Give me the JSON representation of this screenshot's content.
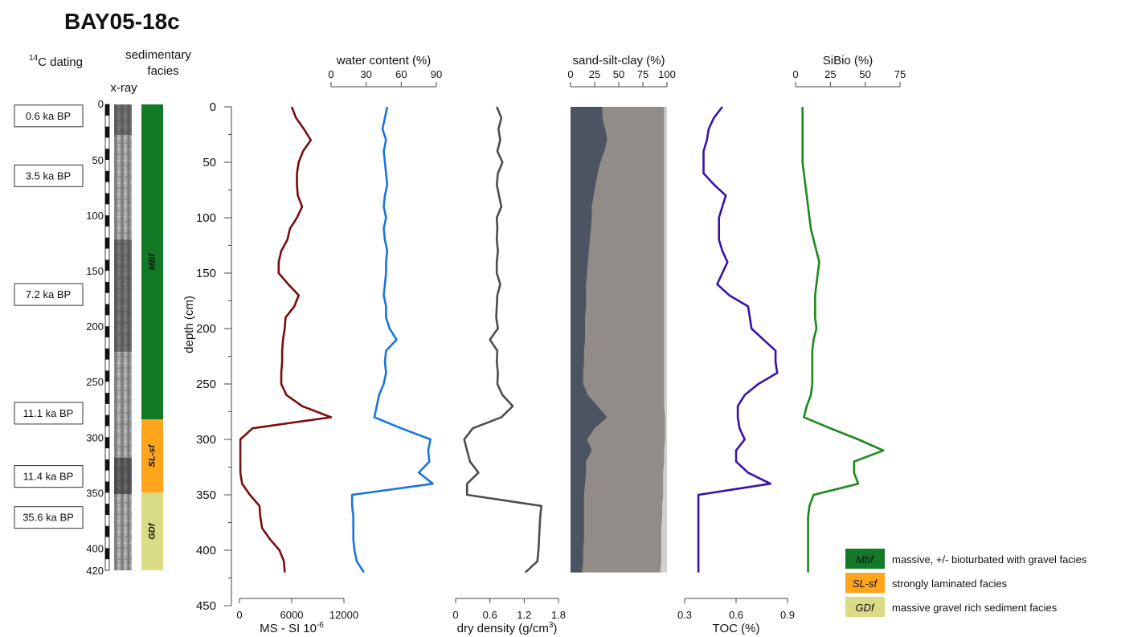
{
  "title": "BAY05-18c",
  "header": {
    "dating_prefix": "14",
    "dating_label": "C dating",
    "facies_label_1": "sedimentary",
    "facies_label_2": "facies",
    "xray_label": "x-ray"
  },
  "colors": {
    "ms": "#7a0d0d",
    "water": "#1a74e0",
    "density": "#4d4d4d",
    "toc": "#3a12a8",
    "sibio": "#1b8a1b",
    "sand": "#4b5460",
    "silt": "#918c87",
    "clay": "#cfcfcf",
    "mbf": "#127a26",
    "slsf": "#ffa51d",
    "gdf": "#d9db85"
  },
  "datings": [
    {
      "label": "0.6 ka BP",
      "depth": 10
    },
    {
      "label": "3.5 ka BP",
      "depth": 64
    },
    {
      "label": "7.2 ka BP",
      "depth": 171
    },
    {
      "label": "11.1 ka BP",
      "depth": 278
    },
    {
      "label": "11.4 ka BP",
      "depth": 335
    },
    {
      "label": "35.6 ka BP",
      "depth": 372
    }
  ],
  "core": {
    "ticks": [
      "0",
      "50",
      "100",
      "150",
      "200",
      "250",
      "300",
      "350",
      "400",
      "420"
    ],
    "bottom_depth": 420
  },
  "facies": [
    {
      "code": "MBf",
      "from": 0,
      "to": 284,
      "color_key": "mbf"
    },
    {
      "code": "SL-sf",
      "from": 284,
      "to": 350,
      "color_key": "slsf"
    },
    {
      "code": "GDf",
      "from": 350,
      "to": 420,
      "color_key": "gdf"
    }
  ],
  "legend": [
    {
      "code": "Mbf",
      "text": "massive, +/- bioturbated with gravel facies",
      "color_key": "mbf"
    },
    {
      "code": "SL-sf",
      "text": "strongly laminated facies",
      "color_key": "slsf"
    },
    {
      "code": "GDf",
      "text": "massive gravel rich sediment facies",
      "color_key": "gdf"
    }
  ],
  "chart_data": {
    "type": "line",
    "depth_axis": {
      "label": "depth (cm)",
      "range": [
        0,
        450
      ],
      "ticks": [
        "0",
        "50",
        "100",
        "150",
        "200",
        "250",
        "300",
        "350",
        "400",
        "450"
      ]
    },
    "depth": [
      0,
      10,
      20,
      30,
      40,
      50,
      60,
      70,
      80,
      90,
      100,
      110,
      120,
      130,
      140,
      150,
      160,
      170,
      180,
      190,
      200,
      210,
      220,
      230,
      240,
      250,
      260,
      270,
      280,
      290,
      300,
      310,
      320,
      330,
      340,
      350,
      360,
      370,
      380,
      390,
      400,
      410,
      420
    ],
    "panels": [
      {
        "key": "ms",
        "xlabel": "MS - SI 10",
        "xlabel_sup": "-6",
        "axis_position": "bottom",
        "range": [
          0,
          12000
        ],
        "ticks": [
          "0",
          "6000",
          "12000"
        ],
        "values": [
          6000,
          6500,
          7400,
          8200,
          7300,
          6800,
          6600,
          6600,
          6700,
          7200,
          6600,
          5800,
          5500,
          4800,
          4500,
          4500,
          5600,
          6800,
          6300,
          5300,
          5200,
          5000,
          4900,
          4900,
          4800,
          4800,
          5400,
          7200,
          10500,
          1500,
          100,
          100,
          100,
          100,
          300,
          1200,
          2300,
          2400,
          2600,
          3500,
          4600,
          5100,
          5200
        ]
      },
      {
        "key": "water",
        "xlabel": "water content (%)",
        "axis_position": "top",
        "range": [
          0,
          90
        ],
        "ticks": [
          "0",
          "30",
          "60",
          "90"
        ],
        "values": [
          48,
          46,
          44,
          47,
          45,
          46,
          47,
          48,
          46,
          45,
          47,
          45,
          46,
          48,
          47,
          47,
          46,
          45,
          47,
          47,
          50,
          56,
          47,
          46,
          47,
          45,
          41,
          39,
          37,
          60,
          85,
          83,
          84,
          75,
          87,
          18,
          18,
          19,
          19,
          19,
          20,
          22,
          28
        ]
      },
      {
        "key": "density",
        "xlabel": "dry density (g/cm",
        "xlabel_sup": "3",
        "xlabel_suffix": ")",
        "axis_position": "bottom",
        "range": [
          0,
          1.8
        ],
        "ticks": [
          "0",
          "0.6",
          "1.2",
          "1.8"
        ],
        "values": [
          0.72,
          0.8,
          0.75,
          0.78,
          0.73,
          0.82,
          0.74,
          0.72,
          0.76,
          0.8,
          0.72,
          0.73,
          0.72,
          0.74,
          0.72,
          0.72,
          0.78,
          0.73,
          0.72,
          0.71,
          0.74,
          0.6,
          0.73,
          0.72,
          0.74,
          0.73,
          0.82,
          1.0,
          0.8,
          0.3,
          0.15,
          0.2,
          0.25,
          0.4,
          0.2,
          0.2,
          1.5,
          1.48,
          1.47,
          1.46,
          1.45,
          1.43,
          1.22
        ]
      },
      {
        "key": "sand-silt-clay",
        "type": "area",
        "xlabel": "sand-silt-clay (%)",
        "axis_position": "top",
        "range": [
          0,
          100
        ],
        "ticks": [
          "0",
          "25",
          "50",
          "75",
          "100"
        ],
        "series": [
          {
            "name": "sand",
            "values": [
              33,
              33,
              36,
              38,
              35,
              31,
              28,
              26,
              24,
              22,
              22,
              21,
              20,
              19,
              18,
              17,
              16,
              16,
              16,
              15,
              15,
              15,
              14,
              14,
              13,
              13,
              18,
              28,
              38,
              25,
              17,
              22,
              16,
              16,
              15,
              14,
              14,
              14,
              14,
              14,
              13,
              13,
              12
            ]
          },
          {
            "name": "silt",
            "values": [
              64,
              64,
              61,
              59,
              62,
              66,
              69,
              71,
              73,
              75,
              75,
              76,
              77,
              78,
              79,
              80,
              81,
              81,
              81,
              82,
              82,
              82,
              83,
              83,
              84,
              84,
              79,
              69,
              60,
              73,
              81,
              75,
              81,
              80,
              81,
              82,
              81,
              81,
              80,
              80,
              81,
              81,
              81
            ]
          },
          {
            "name": "clay",
            "values": [
              3,
              3,
              3,
              3,
              3,
              3,
              3,
              3,
              3,
              3,
              3,
              3,
              3,
              3,
              3,
              3,
              3,
              3,
              3,
              3,
              3,
              3,
              3,
              3,
              3,
              3,
              3,
              3,
              2,
              2,
              2,
              3,
              3,
              4,
              4,
              4,
              5,
              5,
              6,
              6,
              6,
              6,
              7
            ]
          }
        ]
      },
      {
        "key": "toc",
        "xlabel": "TOC (%)",
        "axis_position": "bottom",
        "range": [
          0.3,
          0.9
        ],
        "ticks": [
          "0.3",
          "0.6",
          "0.9"
        ],
        "values": [
          0.52,
          0.47,
          0.44,
          0.43,
          0.41,
          0.41,
          0.41,
          0.47,
          0.54,
          0.52,
          0.5,
          0.5,
          0.5,
          0.52,
          0.55,
          0.52,
          0.49,
          0.56,
          0.67,
          0.68,
          0.69,
          0.76,
          0.83,
          0.83,
          0.84,
          0.73,
          0.65,
          0.61,
          0.61,
          0.62,
          0.65,
          0.6,
          0.6,
          0.67,
          0.8,
          0.38,
          0.38,
          0.38,
          0.38,
          0.38,
          0.38,
          0.38,
          0.38
        ]
      },
      {
        "key": "sibio",
        "xlabel": "SiBio (%)",
        "axis_position": "top",
        "range": [
          0,
          75
        ],
        "ticks": [
          "0",
          "25",
          "50",
          "75"
        ],
        "values": [
          5,
          5,
          5,
          5,
          5,
          5,
          6,
          7,
          8,
          9,
          10,
          11,
          13,
          15,
          17,
          16,
          15,
          14,
          14,
          14,
          15,
          13,
          12,
          12,
          12,
          12,
          11,
          8,
          6,
          25,
          45,
          63,
          42,
          42,
          45,
          13,
          10,
          9,
          9,
          9,
          9,
          9,
          9
        ]
      }
    ]
  }
}
